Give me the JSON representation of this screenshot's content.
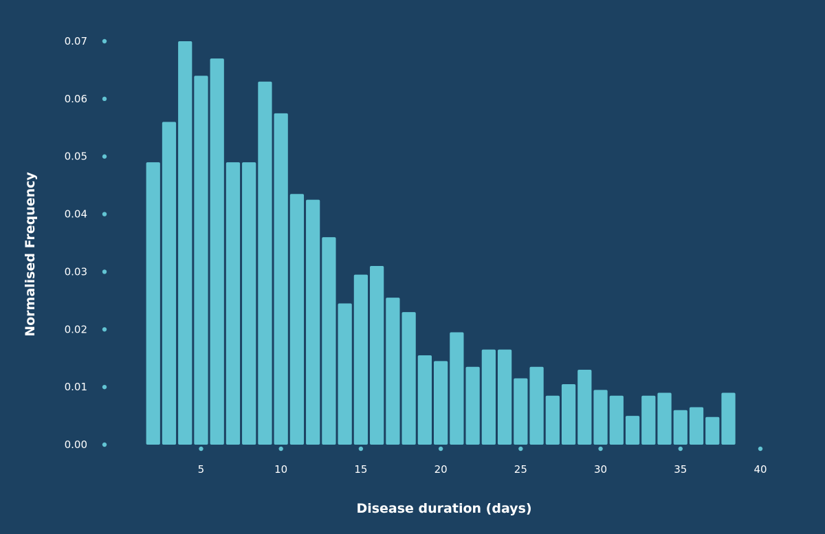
{
  "chart_data": {
    "type": "bar",
    "title": "",
    "xlabel": "Disease duration (days)",
    "ylabel": "Normalised Frequency",
    "xlim": [
      -1,
      40
    ],
    "ylim": [
      0,
      0.07
    ],
    "x_ticks": [
      5,
      10,
      15,
      20,
      25,
      30,
      35,
      40
    ],
    "y_ticks": [
      0.0,
      0.01,
      0.02,
      0.03,
      0.04,
      0.05,
      0.06,
      0.07
    ],
    "x_tick_labels": [
      "5",
      "10",
      "15",
      "20",
      "25",
      "30",
      "35",
      "40"
    ],
    "y_tick_labels": [
      "0.00",
      "0.01",
      "0.02",
      "0.03",
      "0.04",
      "0.05",
      "0.06",
      "0.07"
    ],
    "grid": false,
    "bin_width": 1,
    "bins": [
      {
        "x": 2,
        "value": 0.049
      },
      {
        "x": 3,
        "value": 0.056
      },
      {
        "x": 4,
        "value": 0.07
      },
      {
        "x": 5,
        "value": 0.064
      },
      {
        "x": 6,
        "value": 0.067
      },
      {
        "x": 7,
        "value": 0.049
      },
      {
        "x": 8,
        "value": 0.049
      },
      {
        "x": 9,
        "value": 0.063
      },
      {
        "x": 10,
        "value": 0.0575
      },
      {
        "x": 11,
        "value": 0.0435
      },
      {
        "x": 12,
        "value": 0.0425
      },
      {
        "x": 13,
        "value": 0.036
      },
      {
        "x": 14,
        "value": 0.0245
      },
      {
        "x": 15,
        "value": 0.0295
      },
      {
        "x": 16,
        "value": 0.031
      },
      {
        "x": 17,
        "value": 0.0255
      },
      {
        "x": 18,
        "value": 0.023
      },
      {
        "x": 19,
        "value": 0.0155
      },
      {
        "x": 20,
        "value": 0.0145
      },
      {
        "x": 21,
        "value": 0.0195
      },
      {
        "x": 22,
        "value": 0.0135
      },
      {
        "x": 23,
        "value": 0.0165
      },
      {
        "x": 24,
        "value": 0.0165
      },
      {
        "x": 25,
        "value": 0.0115
      },
      {
        "x": 26,
        "value": 0.0135
      },
      {
        "x": 27,
        "value": 0.0085
      },
      {
        "x": 28,
        "value": 0.0105
      },
      {
        "x": 29,
        "value": 0.013
      },
      {
        "x": 30,
        "value": 0.0095
      },
      {
        "x": 31,
        "value": 0.0085
      },
      {
        "x": 32,
        "value": 0.005
      },
      {
        "x": 33,
        "value": 0.0085
      },
      {
        "x": 34,
        "value": 0.009
      },
      {
        "x": 35,
        "value": 0.006
      },
      {
        "x": 36,
        "value": 0.0065
      },
      {
        "x": 37,
        "value": 0.0048
      },
      {
        "x": 38,
        "value": 0.009
      }
    ],
    "colors": {
      "background": "#1c4161",
      "bar": "#62c4d3",
      "tick_marker": "#62c4d3",
      "text": "#ffffff"
    }
  }
}
